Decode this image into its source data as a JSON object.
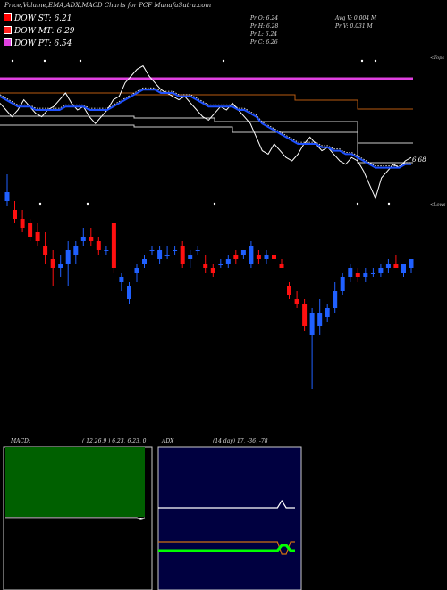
{
  "header": {
    "title": "Price,Volume,EMA,ADX,MACD Charts for PCF MunafaSutra.com",
    "dow_st": "DOW ST: 6.21",
    "dow_mt": "DOW MT: 6.29",
    "dow_pt": "DOW PT: 6.54",
    "pr_o": "Pr  O: 6.24",
    "pr_h": "Pr  H: 6.28",
    "pr_l": "Pr  L: 6.24",
    "pr_c": "Pr  C: 6.26",
    "avg_v": "Avg V: 0.004  M",
    "pr_v": "Pr  V: 0.031 M",
    "top_label": "<Tops",
    "low_label": "<Lows",
    "price_label": "6.68"
  },
  "colors": {
    "up": "#2060ff",
    "down": "#ff1010",
    "dow_st": "#ff0000",
    "dow_mt": "#ff2020",
    "dow_pt": "#e040e0",
    "ema_blue": "#1e50ff",
    "band_brown": "#b85a10",
    "macd_green": "#006000",
    "adx_green": "#00ff00",
    "adx_orange": "#d07010",
    "adx_bg": "#000040"
  },
  "chart_data": [
    {
      "type": "line",
      "series": [
        {
          "values": [
            6.62,
            6.6,
            6.58,
            6.6,
            6.63,
            6.61,
            6.59,
            6.58,
            6.6,
            6.61,
            6.63,
            6.65,
            6.62,
            6.6,
            6.61,
            6.58,
            6.56,
            6.58,
            6.6,
            6.63,
            6.64,
            6.68,
            6.7,
            6.72,
            6.73,
            6.7,
            6.68,
            6.66,
            6.65,
            6.64,
            6.63,
            6.64,
            6.62,
            6.6,
            6.58,
            6.57,
            6.59,
            6.61,
            6.6,
            6.62,
            6.6,
            6.58,
            6.56,
            6.52,
            6.48,
            6.47,
            6.5,
            6.48,
            6.46,
            6.45,
            6.47,
            6.5,
            6.52,
            6.5,
            6.48,
            6.49,
            6.47,
            6.45,
            6.44,
            6.46,
            6.45,
            6.42,
            6.38,
            6.34,
            6.4,
            6.42,
            6.44,
            6.43,
            6.45,
            6.46
          ]
        },
        {
          "values": [
            6.64,
            6.63,
            6.62,
            6.61,
            6.61,
            6.61,
            6.6,
            6.6,
            6.6,
            6.6,
            6.6,
            6.61,
            6.61,
            6.61,
            6.61,
            6.6,
            6.6,
            6.6,
            6.6,
            6.61,
            6.62,
            6.63,
            6.64,
            6.65,
            6.66,
            6.66,
            6.66,
            6.65,
            6.65,
            6.65,
            6.64,
            6.64,
            6.64,
            6.63,
            6.62,
            6.61,
            6.61,
            6.61,
            6.61,
            6.61,
            6.6,
            6.6,
            6.59,
            6.58,
            6.56,
            6.55,
            6.54,
            6.53,
            6.52,
            6.51,
            6.5,
            6.5,
            6.5,
            6.5,
            6.49,
            6.49,
            6.48,
            6.48,
            6.47,
            6.47,
            6.46,
            6.45,
            6.44,
            6.43,
            6.43,
            6.43,
            6.43,
            6.43,
            6.44,
            6.44
          ]
        }
      ],
      "markers": [
        6.79,
        6.63,
        6.62,
        6.66,
        6.72,
        6.69,
        6.56,
        6.44
      ]
    },
    {
      "type": "bar",
      "candles": [
        {
          "o": 6.6,
          "h": 6.66,
          "l": 6.59,
          "c": 6.62
        },
        {
          "o": 6.58,
          "h": 6.6,
          "l": 6.55,
          "c": 6.56
        },
        {
          "o": 6.56,
          "h": 6.58,
          "l": 6.53,
          "c": 6.54
        },
        {
          "o": 6.55,
          "h": 6.56,
          "l": 6.51,
          "c": 6.52
        },
        {
          "o": 6.53,
          "h": 6.55,
          "l": 6.5,
          "c": 6.51
        },
        {
          "o": 6.5,
          "h": 6.53,
          "l": 6.46,
          "c": 6.48
        },
        {
          "o": 6.47,
          "h": 6.49,
          "l": 6.41,
          "c": 6.45
        },
        {
          "o": 6.45,
          "h": 6.48,
          "l": 6.43,
          "c": 6.46
        },
        {
          "o": 6.46,
          "h": 6.51,
          "l": 6.41,
          "c": 6.49
        },
        {
          "o": 6.48,
          "h": 6.51,
          "l": 6.46,
          "c": 6.5
        },
        {
          "o": 6.51,
          "h": 6.54,
          "l": 6.5,
          "c": 6.52
        },
        {
          "o": 6.52,
          "h": 6.54,
          "l": 6.5,
          "c": 6.51
        },
        {
          "o": 6.51,
          "h": 6.52,
          "l": 6.48,
          "c": 6.49
        },
        {
          "o": 6.49,
          "h": 6.5,
          "l": 6.48,
          "c": 6.49
        },
        {
          "o": 6.55,
          "h": 6.55,
          "l": 6.44,
          "c": 6.45
        },
        {
          "o": 6.42,
          "h": 6.44,
          "l": 6.4,
          "c": 6.43
        },
        {
          "o": 6.38,
          "h": 6.42,
          "l": 6.37,
          "c": 6.41
        },
        {
          "o": 6.44,
          "h": 6.46,
          "l": 6.42,
          "c": 6.45
        },
        {
          "o": 6.46,
          "h": 6.48,
          "l": 6.45,
          "c": 6.47
        },
        {
          "o": 6.49,
          "h": 6.5,
          "l": 6.48,
          "c": 6.49
        },
        {
          "o": 6.47,
          "h": 6.5,
          "l": 6.46,
          "c": 6.49
        },
        {
          "o": 6.48,
          "h": 6.5,
          "l": 6.47,
          "c": 6.48
        },
        {
          "o": 6.49,
          "h": 6.5,
          "l": 6.48,
          "c": 6.49
        },
        {
          "o": 6.5,
          "h": 6.51,
          "l": 6.45,
          "c": 6.46
        },
        {
          "o": 6.47,
          "h": 6.49,
          "l": 6.45,
          "c": 6.48
        },
        {
          "o": 6.49,
          "h": 6.5,
          "l": 6.48,
          "c": 6.49
        },
        {
          "o": 6.46,
          "h": 6.48,
          "l": 6.44,
          "c": 6.45
        },
        {
          "o": 6.45,
          "h": 6.46,
          "l": 6.43,
          "c": 6.44
        },
        {
          "o": 6.46,
          "h": 6.47,
          "l": 6.45,
          "c": 6.46
        },
        {
          "o": 6.46,
          "h": 6.48,
          "l": 6.45,
          "c": 6.47
        },
        {
          "o": 6.48,
          "h": 6.49,
          "l": 6.46,
          "c": 6.47
        },
        {
          "o": 6.48,
          "h": 6.49,
          "l": 6.47,
          "c": 6.49
        },
        {
          "o": 6.46,
          "h": 6.51,
          "l": 6.45,
          "c": 6.5
        },
        {
          "o": 6.48,
          "h": 6.49,
          "l": 6.46,
          "c": 6.47
        },
        {
          "o": 6.47,
          "h": 6.49,
          "l": 6.46,
          "c": 6.48
        },
        {
          "o": 6.48,
          "h": 6.49,
          "l": 6.47,
          "c": 6.47
        },
        {
          "o": 6.46,
          "h": 6.47,
          "l": 6.45,
          "c": 6.45
        },
        {
          "o": 6.41,
          "h": 6.42,
          "l": 6.38,
          "c": 6.39
        },
        {
          "o": 6.38,
          "h": 6.4,
          "l": 6.36,
          "c": 6.37
        },
        {
          "o": 6.37,
          "h": 6.38,
          "l": 6.31,
          "c": 6.32
        },
        {
          "o": 6.3,
          "h": 6.36,
          "l": 6.18,
          "c": 6.35
        },
        {
          "o": 6.32,
          "h": 6.38,
          "l": 6.3,
          "c": 6.35
        },
        {
          "o": 6.34,
          "h": 6.37,
          "l": 6.33,
          "c": 6.36
        },
        {
          "o": 6.36,
          "h": 6.42,
          "l": 6.35,
          "c": 6.4
        },
        {
          "o": 6.4,
          "h": 6.44,
          "l": 6.39,
          "c": 6.43
        },
        {
          "o": 6.43,
          "h": 6.46,
          "l": 6.42,
          "c": 6.45
        },
        {
          "o": 6.44,
          "h": 6.45,
          "l": 6.42,
          "c": 6.43
        },
        {
          "o": 6.43,
          "h": 6.45,
          "l": 6.42,
          "c": 6.44
        },
        {
          "o": 6.44,
          "h": 6.45,
          "l": 6.43,
          "c": 6.44
        },
        {
          "o": 6.44,
          "h": 6.46,
          "l": 6.43,
          "c": 6.45
        },
        {
          "o": 6.45,
          "h": 6.47,
          "l": 6.44,
          "c": 6.46
        },
        {
          "o": 6.46,
          "h": 6.48,
          "l": 6.45,
          "c": 6.45
        },
        {
          "o": 6.44,
          "h": 6.46,
          "l": 6.43,
          "c": 6.46
        },
        {
          "o": 6.45,
          "h": 6.47,
          "l": 6.44,
          "c": 6.47
        }
      ]
    },
    {
      "type": "line",
      "title": "MACD:",
      "params": "( 12,26,9 ) 6.23, 6.23, 0",
      "series": [
        {
          "values": [
            0,
            0,
            0,
            0,
            0,
            0,
            0,
            0,
            0,
            0,
            0,
            0,
            0,
            0,
            0,
            0,
            0,
            0,
            0,
            0,
            0,
            0,
            0,
            0,
            0,
            0,
            0,
            0,
            0,
            0,
            0,
            0,
            0,
            0,
            -0.2,
            0
          ]
        }
      ]
    },
    {
      "type": "line",
      "title": "ADX",
      "params": "(14  day) 17,  -36,  -78",
      "series": [
        {
          "values": [
            36,
            36,
            36,
            36,
            36,
            36,
            36,
            36,
            36,
            36,
            36,
            36,
            36,
            36,
            36,
            36,
            36,
            36,
            36,
            36,
            36,
            36,
            36,
            36,
            36,
            36,
            36,
            36,
            40,
            36,
            36,
            36
          ]
        },
        {
          "values": [
            17,
            17,
            17,
            17,
            17,
            17,
            17,
            17,
            17,
            17,
            17,
            17,
            17,
            17,
            17,
            17,
            17,
            17,
            17,
            17,
            17,
            17,
            17,
            17,
            17,
            17,
            17,
            17,
            10,
            10,
            17,
            17
          ]
        },
        {
          "values": [
            5,
            5,
            5,
            5,
            5,
            5,
            5,
            5,
            5,
            5,
            5,
            5,
            5,
            5,
            5,
            5,
            5,
            5,
            5,
            5,
            5,
            5,
            5,
            5,
            5,
            5,
            5,
            5,
            2,
            2,
            5,
            5
          ]
        }
      ]
    }
  ]
}
